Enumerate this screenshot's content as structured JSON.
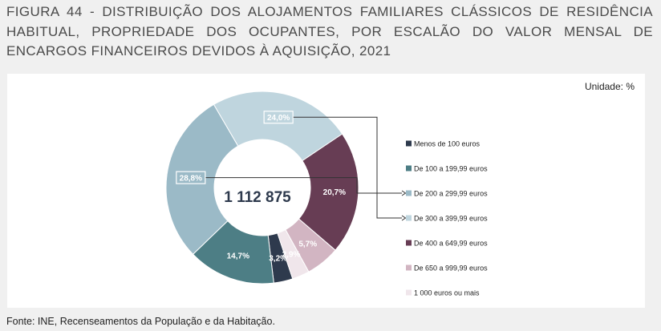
{
  "title": "FIGURA 44 - DISTRIBUIÇÃO DOS ALOJAMENTOS FAMILIARES CLÁSSICOS DE RESIDÊNCIA HABITUAL, PROPRIEDADE DOS OCUPANTES, POR ESCALÃO DO VALOR MENSAL DE ENCARGOS FINANCEIROS DEVIDOS À AQUISIÇÃO, 2021",
  "unit_label": "Unidade: %",
  "source": "Fonte: INE, Recenseamentos da População e da Habitação.",
  "chart_data": {
    "type": "pie",
    "variant": "donut",
    "center_label": "1 112 875",
    "legend_position": "right",
    "slices": [
      {
        "label": "Menos de 100 euros",
        "value": 3.2,
        "value_label": "3,2%",
        "color": "#2e3a4d",
        "text_color": "#ffffff"
      },
      {
        "label": "De 100 a 199,99 euros",
        "value": 14.7,
        "value_label": "14,7%",
        "color": "#4d7e85",
        "text_color": "#ffffff"
      },
      {
        "label": "De 200 a 299,99 euros",
        "value": 28.8,
        "value_label": "28,8%",
        "color": "#9bbac7",
        "text_color": "#ffffff",
        "boxed": true,
        "callout_to_legend": true
      },
      {
        "label": "De 300 a 399,99 euros",
        "value": 24.0,
        "value_label": "24,0%",
        "color": "#bfd5de",
        "text_color": "#ffffff",
        "boxed": true,
        "callout_to_legend": true
      },
      {
        "label": "De 400 a 649,99 euros",
        "value": 20.7,
        "value_label": "20,7%",
        "color": "#673d54",
        "text_color": "#ffffff"
      },
      {
        "label": "De 650 a 999,99 euros",
        "value": 5.7,
        "value_label": "5,7%",
        "color": "#d2b5c2",
        "text_color": "#ffffff"
      },
      {
        "label": "1 000 euros ou mais",
        "value": 2.9,
        "value_label": "2,9%",
        "color": "#f0e6eb",
        "text_color": "#ffffff"
      }
    ]
  }
}
